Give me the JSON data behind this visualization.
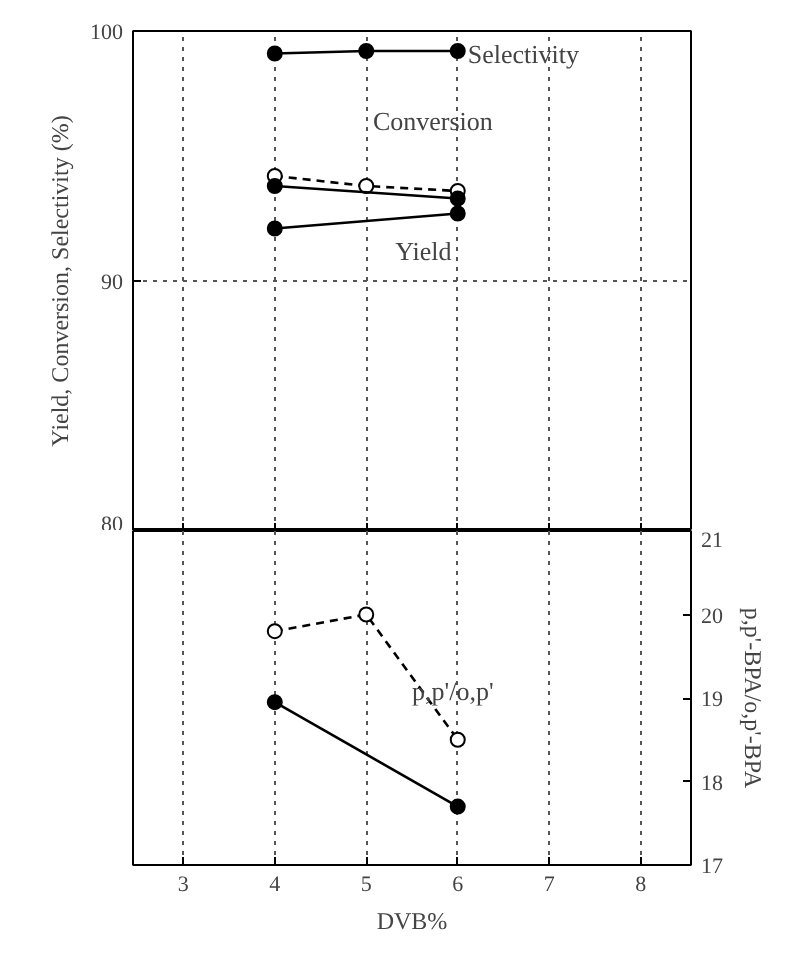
{
  "chart_data": [
    {
      "type": "line",
      "ylabel": "Yield, Conversion, Selectivity (%)",
      "xlim": [
        2.45,
        8.55
      ],
      "xticks": [
        3,
        4,
        5,
        6,
        7,
        8
      ],
      "ylim": [
        80,
        100
      ],
      "yticks": [
        80,
        90,
        100
      ],
      "tick_labels": "y",
      "grid": true,
      "marker": "circle",
      "series": [
        {
          "color": "#000000",
          "x": [
            4,
            5,
            6
          ],
          "values": [
            99.1,
            99.2,
            99.2
          ],
          "line_style": "solid"
        },
        {
          "color": "#000000",
          "x": [
            4,
            5,
            6
          ],
          "values": [
            94.2,
            93.8,
            93.6
          ],
          "line_style": "dashed"
        },
        {
          "color": "#000000",
          "x": [
            4,
            6
          ],
          "values": [
            93.8,
            93.3
          ],
          "line_style": "solid"
        },
        {
          "color": "#000000",
          "x": [
            4,
            6
          ],
          "values": [
            92.1,
            92.7
          ],
          "line_style": "solid"
        }
      ],
      "annotations": [
        "Selectivity",
        "Conversion",
        "Yield"
      ]
    },
    {
      "type": "line",
      "xlabel": "DVB%",
      "y2label": "p,p'-BPA/o,p'-BPA",
      "xlim": [
        2.45,
        8.55
      ],
      "xticks": [
        3,
        4,
        5,
        6,
        7,
        8
      ],
      "y2lim": [
        17,
        21
      ],
      "y2ticks": [
        17,
        18,
        19,
        20,
        21
      ],
      "grid": "x",
      "marker": "circle",
      "series": [
        {
          "color": "#000000",
          "x": [
            4,
            5,
            6
          ],
          "values": [
            19.8,
            20.0,
            18.5
          ],
          "line_style": "dashed",
          "axis": "y2"
        },
        {
          "color": "#000000",
          "x": [
            4,
            6
          ],
          "values": [
            18.95,
            17.7
          ],
          "line_style": "solid",
          "axis": "y2"
        }
      ],
      "annotations": [
        "p,p'/o,p'"
      ]
    }
  ]
}
